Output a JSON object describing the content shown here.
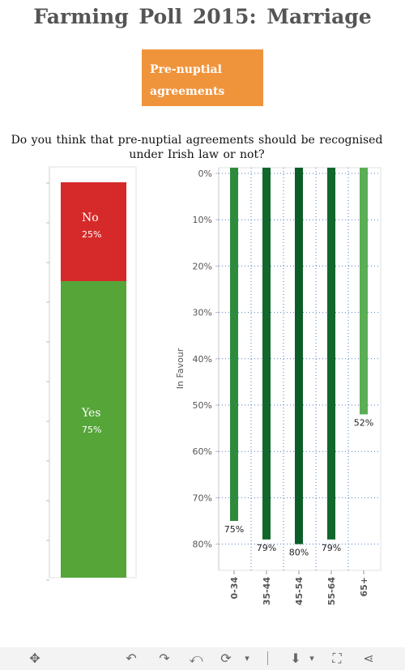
{
  "header": {
    "title": "Farming Poll 2015: Marriage",
    "tag": "Pre-nuptial agreements",
    "question": "Do you think that pre-nuptial agreements should be recognised under Irish law or not?"
  },
  "chart_data": [
    {
      "type": "bar",
      "stacked": true,
      "categories": [
        "Yes",
        "No"
      ],
      "values": [
        75,
        25
      ],
      "labels": [
        "75%",
        "25%"
      ],
      "colors": {
        "Yes": "#55a539",
        "No": "#d62a2a"
      }
    },
    {
      "type": "bar",
      "categories": [
        "0-34",
        "35-44",
        "45-54",
        "55-64",
        "65+"
      ],
      "values": [
        75,
        79,
        80,
        79,
        52
      ],
      "labels": [
        "75%",
        "79%",
        "80%",
        "79%",
        "52%"
      ],
      "ylabel": "In Favour",
      "ylim": [
        0,
        87
      ],
      "y_axis_reversed": true,
      "yticks": [
        "0%",
        "10%",
        "20%",
        "30%",
        "40%",
        "50%",
        "60%",
        "70%",
        "80%"
      ],
      "grid": true,
      "colors": [
        "#2e8b3e",
        "#11672c",
        "#0b5e27",
        "#11672c",
        "#5aae55"
      ]
    }
  ],
  "toolbar": {
    "icons": [
      "move-icon",
      "undo-icon",
      "redo-icon",
      "revert-icon",
      "refresh-icon",
      "dropdown-icon",
      "download-icon",
      "fullscreen-icon",
      "share-icon"
    ],
    "glyphs": [
      "✥",
      "↶",
      "↷",
      "⤺",
      "⟳",
      "▾",
      "⬇",
      "⛶",
      "⋖"
    ]
  }
}
